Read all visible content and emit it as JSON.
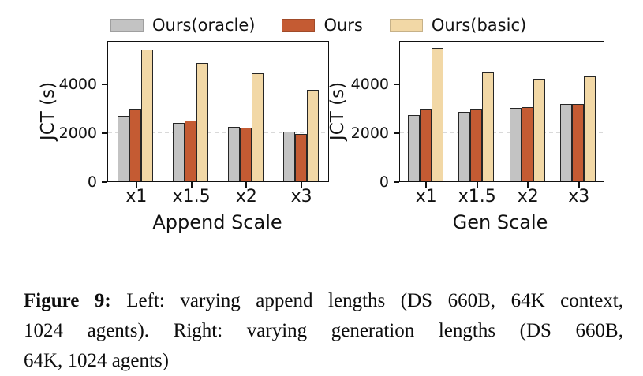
{
  "figure": {
    "legend": {
      "items": [
        {
          "label": "Ours(oracle)",
          "color": "#c3c3c3"
        },
        {
          "label": "Ours",
          "color": "#c45b33"
        },
        {
          "label": "Ours(basic)",
          "color": "#f2d8a6"
        }
      ]
    },
    "caption": {
      "tag": "Figure 9:",
      "lines": [
        "Left: varying append lengths (DS 660B, 64K context,",
        "1024 agents). Right: varying generation lengths (DS 660B,",
        "64K, 1024 agents)"
      ]
    },
    "colors": {
      "bar_edge": "#262626",
      "axis": "#111111",
      "gridline": "#d9d9d9"
    }
  },
  "chart_data": [
    {
      "type": "bar",
      "title": "",
      "xlabel": "Append Scale",
      "ylabel": "JCT (s)",
      "categories": [
        "x1",
        "x1.5",
        "x2",
        "x3"
      ],
      "series": [
        {
          "name": "Ours(oracle)",
          "color": "#c3c3c3",
          "values": [
            2690,
            2390,
            2230,
            2040
          ]
        },
        {
          "name": "Ours",
          "color": "#c45b33",
          "values": [
            2960,
            2490,
            2190,
            1940
          ]
        },
        {
          "name": "Ours(basic)",
          "color": "#f2d8a6",
          "values": [
            5390,
            4820,
            4420,
            3730
          ]
        }
      ],
      "yticks": [
        0,
        2000,
        4000
      ],
      "ylim": [
        0,
        5700
      ],
      "grid": "dashed-horizontal",
      "legend_position": "above-figure"
    },
    {
      "type": "bar",
      "title": "",
      "xlabel": "Gen Scale",
      "ylabel": "JCT (s)",
      "categories": [
        "x1",
        "x1.5",
        "x2",
        "x3"
      ],
      "series": [
        {
          "name": "Ours(oracle)",
          "color": "#c3c3c3",
          "values": [
            2700,
            2840,
            2990,
            3150
          ]
        },
        {
          "name": "Ours",
          "color": "#c45b33",
          "values": [
            2970,
            2950,
            3040,
            3170
          ]
        },
        {
          "name": "Ours(basic)",
          "color": "#f2d8a6",
          "values": [
            5430,
            4470,
            4180,
            4270
          ]
        }
      ],
      "yticks": [
        0,
        2000,
        4000
      ],
      "ylim": [
        0,
        5700
      ],
      "grid": "dashed-horizontal",
      "legend_position": "above-figure"
    }
  ]
}
